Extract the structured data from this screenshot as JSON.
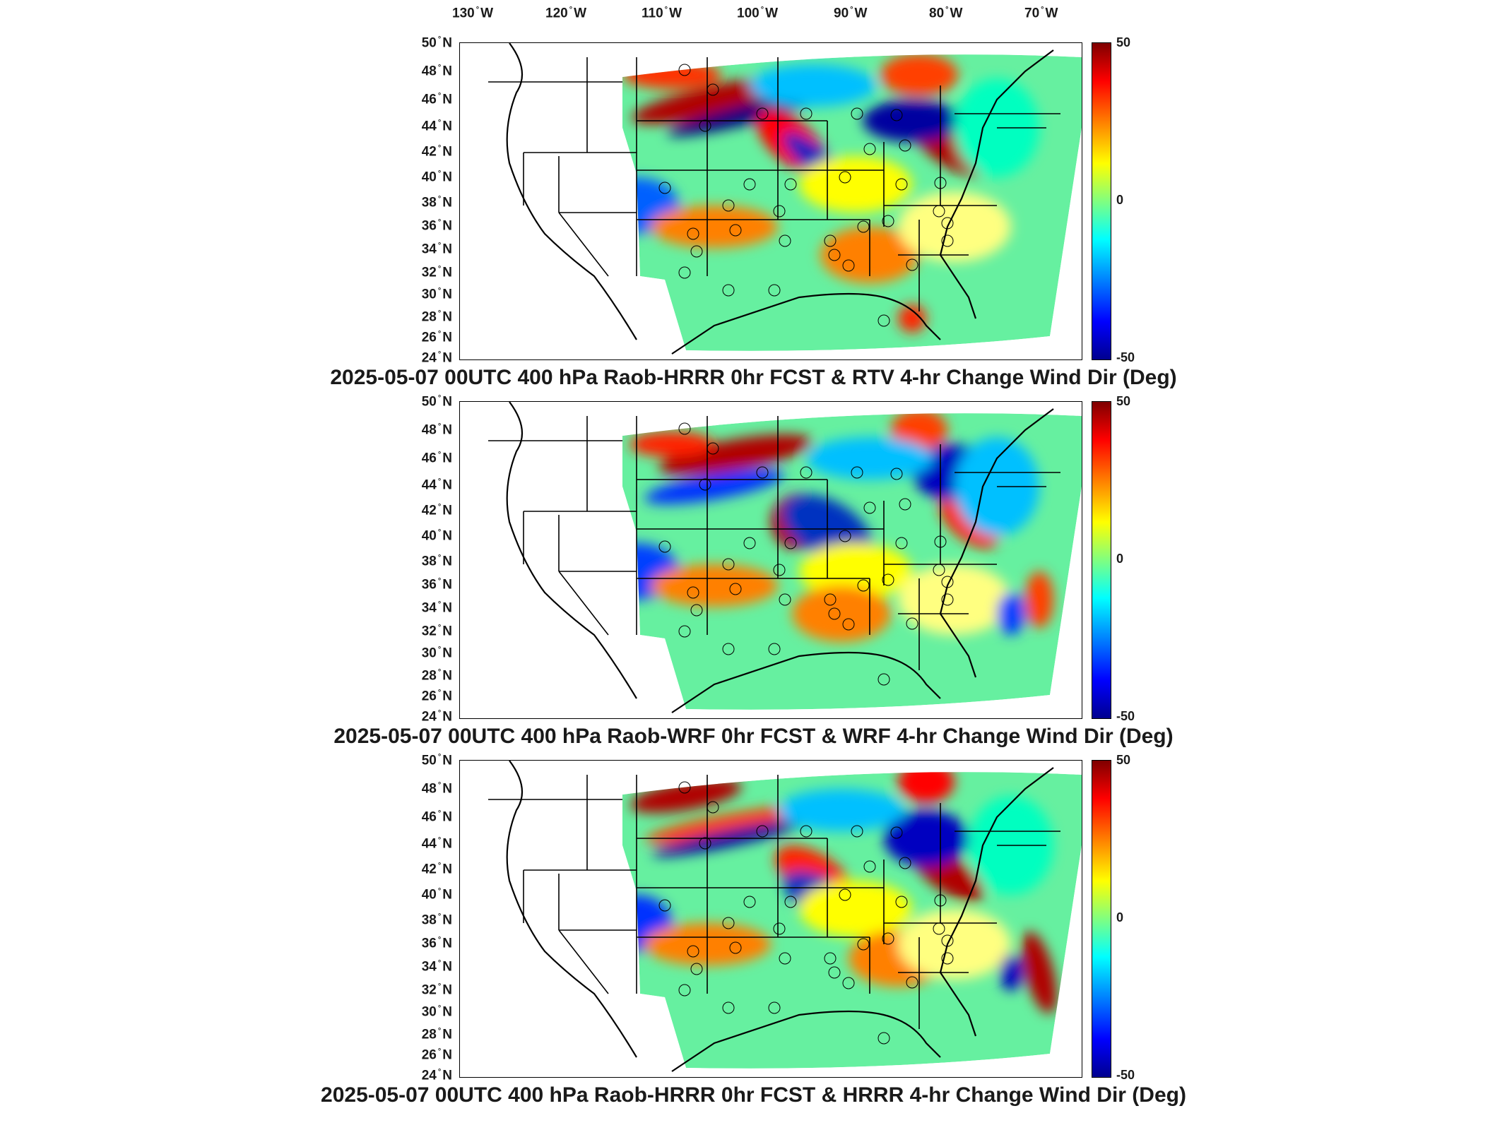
{
  "lon_labels": [
    "130",
    "120",
    "110",
    "100",
    "90",
    "80",
    "70"
  ],
  "lon_suffix": "W",
  "lat_labels": [
    "50",
    "48",
    "46",
    "44",
    "42",
    "40",
    "38",
    "36",
    "34",
    "32",
    "30",
    "28",
    "26",
    "24"
  ],
  "lat_suffix": "N",
  "colorbar": {
    "max": "50",
    "mid": "0",
    "min": "-50",
    "colors": [
      "#7f0000",
      "#ff0000",
      "#ff8000",
      "#ffff00",
      "#80ff80",
      "#00ffff",
      "#0080ff",
      "#0000ff",
      "#00008f"
    ]
  },
  "panels": [
    {
      "title": "2025-05-07 00UTC 400 hPa Raob-HRRR 0hr FCST & RTV 4-hr Change Wind Dir (Deg)"
    },
    {
      "title": "2025-05-07 00UTC 400 hPa Raob-WRF 0hr FCST & WRF 4-hr Change Wind Dir (Deg)"
    },
    {
      "title": "2025-05-07 00UTC 400 hPa Raob-HRRR 0hr FCST & HRRR 4-hr Change Wind Dir (Deg)"
    }
  ]
}
